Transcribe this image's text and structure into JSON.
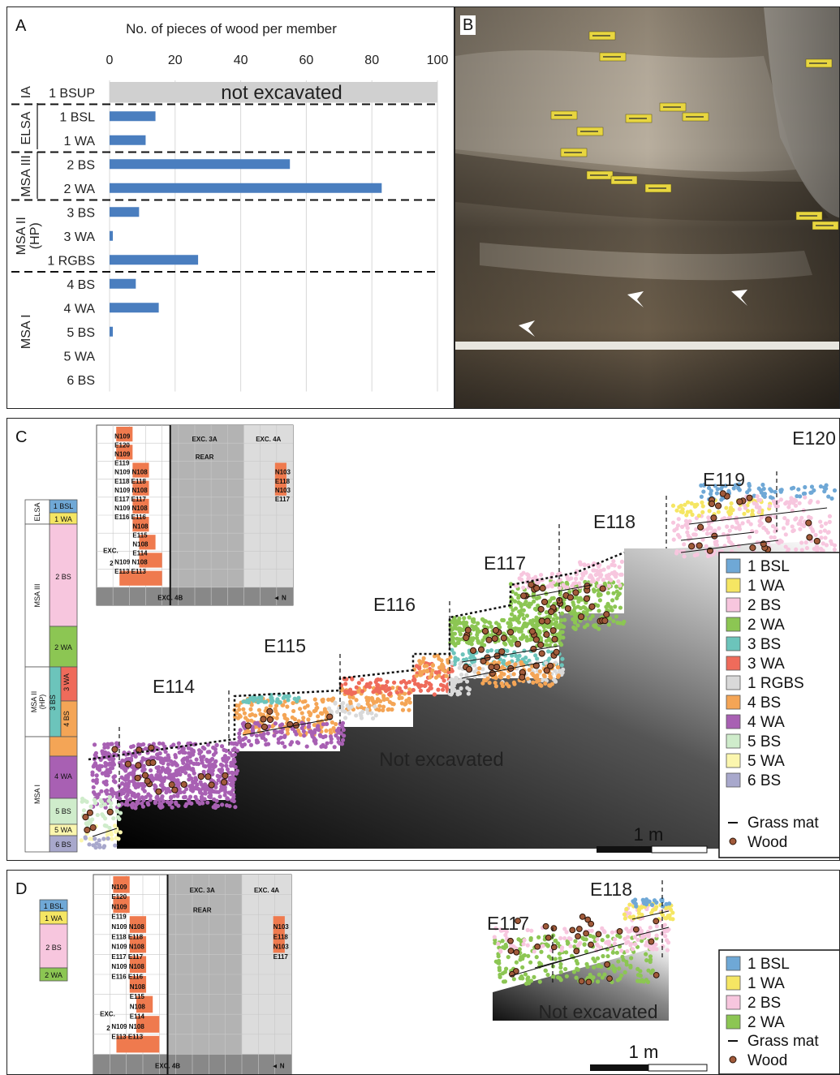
{
  "panel_labels": {
    "a": "A",
    "b": "B",
    "c": "C",
    "d": "D"
  },
  "chart_data": {
    "type": "bar",
    "orientation": "horizontal",
    "title": "No. of pieces of wood per member",
    "xlim": [
      0,
      100
    ],
    "xticks": [
      "0",
      "20",
      "40",
      "60",
      "80",
      "100"
    ],
    "categories": [
      "1 BSUP",
      "1 BSL",
      "1 WA",
      "2 BS",
      "2 WA",
      "3 BS",
      "3 WA",
      "1 RGBS",
      "4 BS",
      "4 WA",
      "5 BS",
      "5 WA",
      "6 BS"
    ],
    "values": [
      null,
      14,
      11,
      55,
      83,
      9,
      1,
      27,
      8,
      15,
      1,
      0,
      0
    ],
    "not_excavated_label": "not excavated",
    "groups": [
      {
        "label": "IA",
        "from": 0,
        "to": 0
      },
      {
        "label": "ELSA",
        "from": 1,
        "to": 2
      },
      {
        "label": "MSA III",
        "from": 3,
        "to": 4
      },
      {
        "label": "MSA II (HP)",
        "from": 5,
        "to": 7
      },
      {
        "label": "MSA I",
        "from": 8,
        "to": 12
      }
    ],
    "bar_color": "#4a7ebf",
    "grid": true
  },
  "panel_b": {
    "tags": [
      "",
      "",
      "",
      "",
      "",
      "",
      "",
      "",
      "",
      "",
      "",
      "",
      "",
      ""
    ]
  },
  "panel_c": {
    "not_excavated": "Not excavated",
    "scale_label": "1 m",
    "grid_labels": [
      "E114",
      "E115",
      "E116",
      "E117",
      "E118",
      "E119",
      "E120"
    ],
    "strat_groups": [
      "ELSA",
      "MSA III",
      "MSA II (HP)",
      "MSA I"
    ],
    "strat_members": [
      "1 BSL",
      "1 WA",
      "2 BS",
      "2 WA",
      "3 WA",
      "3 BS",
      "4 BS",
      "4 WA",
      "5 BS",
      "5 WA",
      "6 BS"
    ],
    "legend": [
      {
        "label": "1 BSL",
        "color": "#6fa8d6"
      },
      {
        "label": "1 WA",
        "color": "#f5e663"
      },
      {
        "label": "2 BS",
        "color": "#f7c6de"
      },
      {
        "label": "2 WA",
        "color": "#8cc653"
      },
      {
        "label": "3 BS",
        "color": "#6cc4bb"
      },
      {
        "label": "3 WA",
        "color": "#ef6b5b"
      },
      {
        "label": "1 RGBS",
        "color": "#d9d9d9"
      },
      {
        "label": "4 BS",
        "color": "#f4a556"
      },
      {
        "label": "4 WA",
        "color": "#a860b3"
      },
      {
        "label": "5 BS",
        "color": "#cfeccb"
      },
      {
        "label": "5 WA",
        "color": "#fbf6ae"
      },
      {
        "label": "6 BS",
        "color": "#a8a8cc"
      }
    ],
    "legend_grass": "Grass mat",
    "legend_wood": "Wood"
  },
  "inset_map": {
    "exc3a": "EXC. 3A",
    "exc3a_b": "REAR",
    "exc4a": "EXC. 4A",
    "exc2": "EXC.",
    "exc2_b": "2",
    "exc4b": "EXC. 4B",
    "north": "N",
    "cells": [
      "N109",
      "E120",
      "N109",
      "E119",
      "N109 N108",
      "E118 E118",
      "N109 N108",
      "E117 E117",
      "N109 N108",
      "E116 E116",
      "N108",
      "E115",
      "N108",
      "E114",
      "N109 N108",
      "E113 E113"
    ],
    "right_cells": [
      "N103",
      "E118",
      "N103",
      "E117"
    ]
  },
  "panel_d": {
    "grid_labels": [
      "E117",
      "E118"
    ],
    "not_excavated": "Not excavated",
    "scale_label": "1 m",
    "strat_members": [
      "1 BSL",
      "1 WA",
      "2 BS",
      "2 WA"
    ],
    "legend": [
      {
        "label": "1 BSL",
        "color": "#6fa8d6"
      },
      {
        "label": "1 WA",
        "color": "#f5e663"
      },
      {
        "label": "2 BS",
        "color": "#f7c6de"
      },
      {
        "label": "2 WA",
        "color": "#8cc653"
      }
    ],
    "legend_grass": "Grass mat",
    "legend_wood": "Wood"
  }
}
